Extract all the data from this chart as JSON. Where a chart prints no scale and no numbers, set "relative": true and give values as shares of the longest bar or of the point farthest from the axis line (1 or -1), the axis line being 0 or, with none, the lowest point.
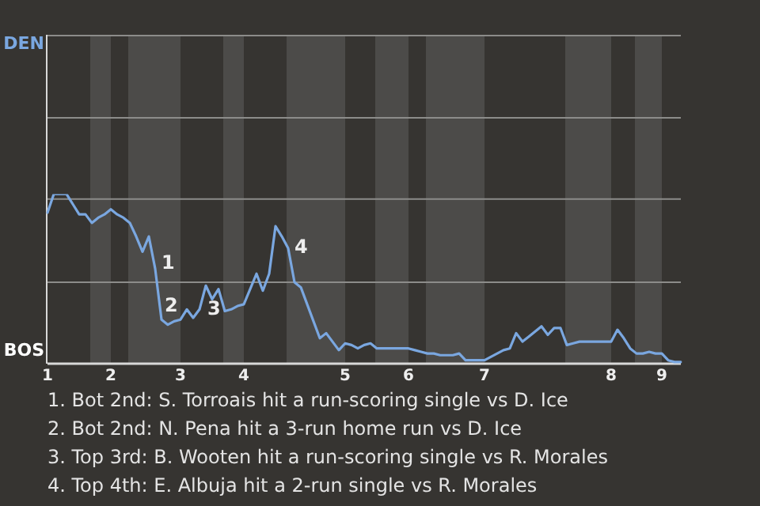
{
  "chart_data": {
    "type": "line",
    "relative": true,
    "categories": [
      "1",
      null,
      null,
      null,
      null,
      null,
      null,
      null,
      null,
      null,
      "2",
      null,
      null,
      null,
      null,
      null,
      null,
      null,
      null,
      null,
      null,
      "3",
      null,
      null,
      null,
      null,
      null,
      null,
      null,
      null,
      null,
      "4",
      null,
      null,
      null,
      null,
      null,
      null,
      null,
      null,
      null,
      null,
      null,
      null,
      null,
      null,
      null,
      "5",
      null,
      null,
      null,
      null,
      null,
      null,
      null,
      null,
      null,
      "6",
      null,
      null,
      null,
      null,
      null,
      null,
      null,
      null,
      null,
      null,
      null,
      "7",
      null,
      null,
      null,
      null,
      null,
      null,
      null,
      null,
      null,
      null,
      null,
      null,
      null,
      null,
      null,
      null,
      null,
      null,
      null,
      "8",
      null,
      null,
      null,
      null,
      null,
      null,
      null,
      "9",
      null,
      null,
      null
    ],
    "legend": false,
    "marker": "none",
    "line_style": "solid",
    "series": [
      {
        "color": "#7aa7e0",
        "values": [
          0.89,
          1,
          1,
          1,
          0.94,
          0.88,
          0.88,
          0.83,
          0.86,
          0.88,
          0.91,
          0.88,
          0.86,
          0.83,
          0.75,
          0.66,
          0.75,
          0.56,
          0.26,
          0.23,
          0.25,
          0.26,
          0.32,
          0.27,
          0.32,
          0.46,
          0.38,
          0.44,
          0.31,
          0.32,
          0.34,
          0.35,
          0.44,
          0.53,
          0.43,
          0.53,
          0.81,
          0.75,
          0.68,
          0.48,
          0.45,
          0.35,
          0.25,
          0.15,
          0.18,
          0.13,
          0.08,
          0.12,
          0.11,
          0.09,
          0.11,
          0.12,
          0.09,
          0.09,
          0.09,
          0.09,
          0.09,
          0.09,
          0.08,
          0.07,
          0.06,
          0.06,
          0.05,
          0.05,
          0.05,
          0.06,
          0.02,
          0.02,
          0.02,
          0.02,
          0.04,
          0.06,
          0.08,
          0.09,
          0.18,
          0.13,
          0.16,
          0.19,
          0.22,
          0.17,
          0.21,
          0.21,
          0.11,
          0.12,
          0.13,
          0.13,
          0.13,
          0.13,
          0.13,
          0.13,
          0.2,
          0.15,
          0.09,
          0.06,
          0.06,
          0.07,
          0.06,
          0.06,
          0.02,
          0.01,
          0.01
        ]
      }
    ],
    "ref_lines": [
      {
        "axis": "y",
        "value": 0.48,
        "color": "#8c8c8a"
      },
      {
        "axis": "y",
        "value": 0.97,
        "color": "#8c8c8a"
      }
    ],
    "annotations": [
      "DEN",
      "BOS",
      "1",
      "2",
      "3",
      "4",
      "1. Bot 2nd: S. Torroais hit a run-scoring single vs D. Ice",
      "2. Bot 2nd: N. Pena hit a 3-run home run vs D. Ice",
      "3. Top 3rd: B. Wooten hit a run-scoring single vs R. Morales",
      "4. Top 4th: E. Albuja hit a 2-run single vs R. Morales"
    ]
  }
}
